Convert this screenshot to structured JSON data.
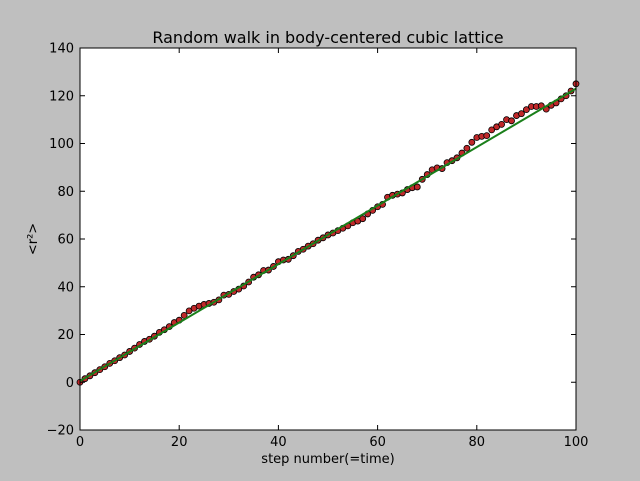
{
  "chart_data": {
    "type": "scatter",
    "title": "Random walk in body-centered cubic lattice",
    "xlabel": "step number(=time)",
    "ylabel": "<r²>",
    "xlim": [
      0,
      100
    ],
    "ylim": [
      -20,
      140
    ],
    "xticks": [
      0,
      20,
      40,
      60,
      80,
      100
    ],
    "yticks": [
      -20,
      0,
      20,
      40,
      60,
      80,
      100,
      120,
      140
    ],
    "grid": false,
    "colors": {
      "figure_bg": "#bfbfbf",
      "axes_bg": "#ffffff",
      "marker_fill": "#c0282a",
      "marker_edge": "#000000",
      "fit_line": "#1a7f1a"
    },
    "series": [
      {
        "kind": "markers",
        "x": [
          0,
          1,
          2,
          3,
          4,
          5,
          6,
          7,
          8,
          9,
          10,
          11,
          12,
          13,
          14,
          15,
          16,
          17,
          18,
          19,
          20,
          21,
          22,
          23,
          24,
          25,
          26,
          27,
          28,
          29,
          30,
          31,
          32,
          33,
          34,
          35,
          36,
          37,
          38,
          39,
          40,
          41,
          42,
          43,
          44,
          45,
          46,
          47,
          48,
          49,
          50,
          51,
          52,
          53,
          54,
          55,
          56,
          57,
          58,
          59,
          60,
          61,
          62,
          63,
          64,
          65,
          66,
          67,
          68,
          69,
          70,
          71,
          72,
          73,
          74,
          75,
          76,
          77,
          78,
          79,
          80,
          81,
          82,
          83,
          84,
          85,
          86,
          87,
          88,
          89,
          90,
          91,
          92,
          93,
          94,
          95,
          96,
          97,
          98,
          99,
          100
        ],
        "y": [
          0,
          1.5,
          2.7,
          4,
          5.3,
          6.5,
          7.9,
          9,
          10.3,
          11.4,
          12.9,
          14.3,
          15.8,
          17.1,
          18,
          19.3,
          20.9,
          22,
          23.3,
          25,
          26,
          28,
          29.9,
          31,
          31.9,
          32.6,
          33,
          33.5,
          34.5,
          36.5,
          36.8,
          38,
          39,
          40.3,
          42,
          44,
          45,
          46.8,
          47,
          48.5,
          50.5,
          51.2,
          51.5,
          53,
          54.8,
          55.7,
          57,
          58,
          59.5,
          60.5,
          61.7,
          62.5,
          63.5,
          64.5,
          65.5,
          66.8,
          67.5,
          68.5,
          70.5,
          72,
          73.5,
          74.5,
          77.5,
          78.3,
          78.8,
          79.3,
          80.7,
          81.5,
          81.8,
          85,
          87,
          89,
          89.8,
          89.5,
          92,
          92.8,
          94,
          96,
          98,
          100.5,
          102.5,
          103,
          103.3,
          105.7,
          107,
          108,
          110,
          109.5,
          111.7,
          112.5,
          114.2,
          115.5,
          115.5,
          115.8,
          114.4,
          116,
          117,
          118.7,
          120,
          122,
          125
        ]
      },
      {
        "kind": "fit-line",
        "x": [
          0,
          100
        ],
        "y": [
          0.5,
          123
        ]
      }
    ]
  }
}
